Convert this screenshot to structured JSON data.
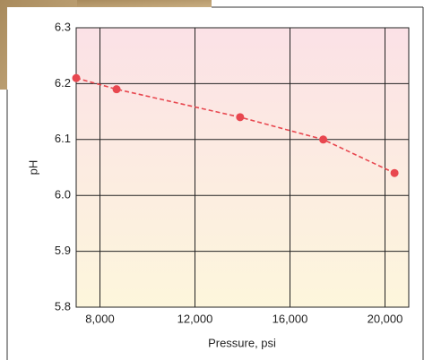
{
  "chart_data": {
    "type": "line",
    "x_label": "Pressure, psi",
    "y_label": "pH",
    "x": [
      7000,
      8700,
      13900,
      17400,
      20400
    ],
    "series": [
      {
        "name": "pH",
        "color": "#e8474f",
        "values": [
          6.21,
          6.19,
          6.14,
          6.1,
          6.04
        ]
      }
    ],
    "xlim": [
      7000,
      21000
    ],
    "xticks": [
      {
        "value": 8000,
        "label": "8,000"
      },
      {
        "value": 12000,
        "label": "12,000"
      },
      {
        "value": 16000,
        "label": "16,000"
      },
      {
        "value": 20000,
        "label": "20,000"
      }
    ],
    "ylim": [
      5.8,
      6.3
    ],
    "yticks": [
      5.8,
      5.9,
      {
        "value": 6,
        "label": "6.0"
      },
      6.1,
      6.2,
      6.3
    ],
    "grid": true
  }
}
